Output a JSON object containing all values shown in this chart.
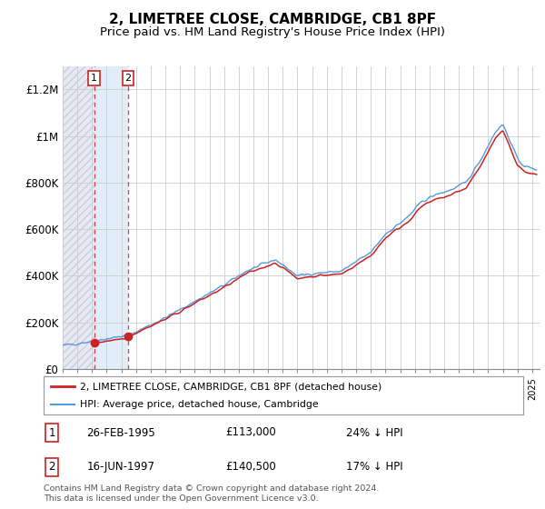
{
  "title": "2, LIMETREE CLOSE, CAMBRIDGE, CB1 8PF",
  "subtitle": "Price paid vs. HM Land Registry's House Price Index (HPI)",
  "title_fontsize": 11,
  "subtitle_fontsize": 9.5,
  "ylabel_ticks": [
    "£0",
    "£200K",
    "£400K",
    "£600K",
    "£800K",
    "£1M",
    "£1.2M"
  ],
  "ytick_values": [
    0,
    200000,
    400000,
    600000,
    800000,
    1000000,
    1200000
  ],
  "ylim": [
    0,
    1300000
  ],
  "xlim_start": 1993.0,
  "xlim_end": 2025.5,
  "transaction1_date": 1995.15,
  "transaction1_price": 113000,
  "transaction2_date": 1997.46,
  "transaction2_price": 140500,
  "legend_line1": "2, LIMETREE CLOSE, CAMBRIDGE, CB1 8PF (detached house)",
  "legend_line2": "HPI: Average price, detached house, Cambridge",
  "table_row1": [
    "1",
    "26-FEB-1995",
    "£113,000",
    "24% ↓ HPI"
  ],
  "table_row2": [
    "2",
    "16-JUN-1997",
    "£140,500",
    "17% ↓ HPI"
  ],
  "footer": "Contains HM Land Registry data © Crown copyright and database right 2024.\nThis data is licensed under the Open Government Licence v3.0.",
  "hpi_color": "#5599dd",
  "price_color": "#cc2222",
  "hatch_color": "#c8cce0"
}
